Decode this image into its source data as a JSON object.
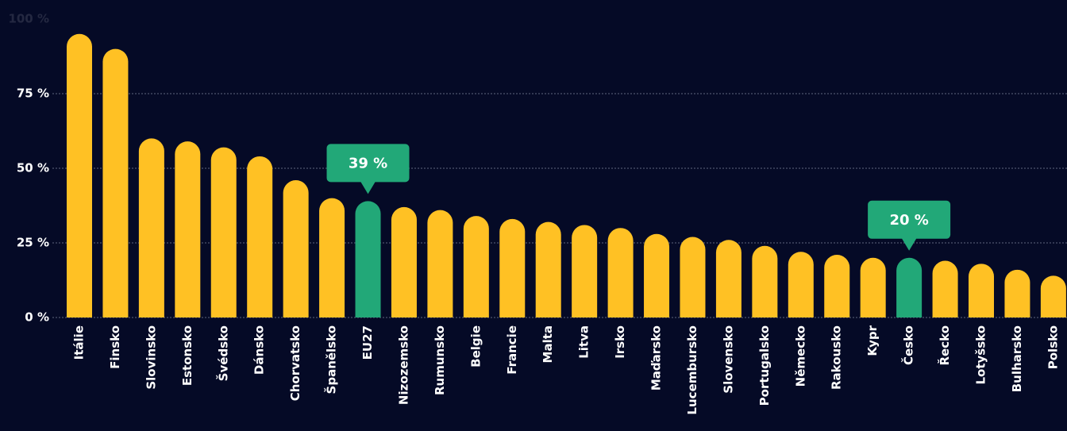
{
  "chart_data": {
    "type": "bar",
    "categories": [
      "Itálie",
      "Finsko",
      "Slovinsko",
      "Estonsko",
      "Švédsko",
      "Dánsko",
      "Chorvatsko",
      "Španělsko",
      "EU27",
      "Nizozemsko",
      "Rumunsko",
      "Belgie",
      "Francie",
      "Malta",
      "Litva",
      "Irsko",
      "Maďarsko",
      "Lucembursko",
      "Slovensko",
      "Portugalsko",
      "Německo",
      "Rakousko",
      "Kypr",
      "Česko",
      "Řecko",
      "Lotyšsko",
      "Bulharsko",
      "Polsko"
    ],
    "values": [
      95,
      90,
      60,
      59,
      57,
      54,
      46,
      40,
      39,
      37,
      36,
      34,
      33,
      32,
      31,
      30,
      28,
      27,
      26,
      24,
      22,
      21,
      20,
      20,
      19,
      18,
      16,
      14
    ],
    "value_labels": [
      null,
      null,
      null,
      null,
      null,
      null,
      null,
      null,
      "39 %",
      null,
      null,
      null,
      null,
      null,
      null,
      null,
      null,
      null,
      null,
      null,
      null,
      null,
      null,
      "20 %",
      null,
      null,
      null,
      null
    ],
    "colors": [
      "#ffc124",
      "#ffc124",
      "#ffc124",
      "#ffc124",
      "#ffc124",
      "#ffc124",
      "#ffc124",
      "#ffc124",
      "#22a878",
      "#ffc124",
      "#ffc124",
      "#ffc124",
      "#ffc124",
      "#ffc124",
      "#ffc124",
      "#ffc124",
      "#ffc124",
      "#ffc124",
      "#ffc124",
      "#ffc124",
      "#ffc124",
      "#ffc124",
      "#ffc124",
      "#22a878",
      "#ffc124",
      "#ffc124",
      "#ffc124",
      "#ffc124"
    ],
    "ylim": [
      0,
      100
    ],
    "yticks": [
      {
        "value": 0,
        "label": "0 %"
      },
      {
        "value": 25,
        "label": "25 %"
      },
      {
        "value": 50,
        "label": "50 %"
      },
      {
        "value": 75,
        "label": "75 %"
      },
      {
        "value": 100,
        "label": "100 %"
      }
    ],
    "grid": true
  }
}
